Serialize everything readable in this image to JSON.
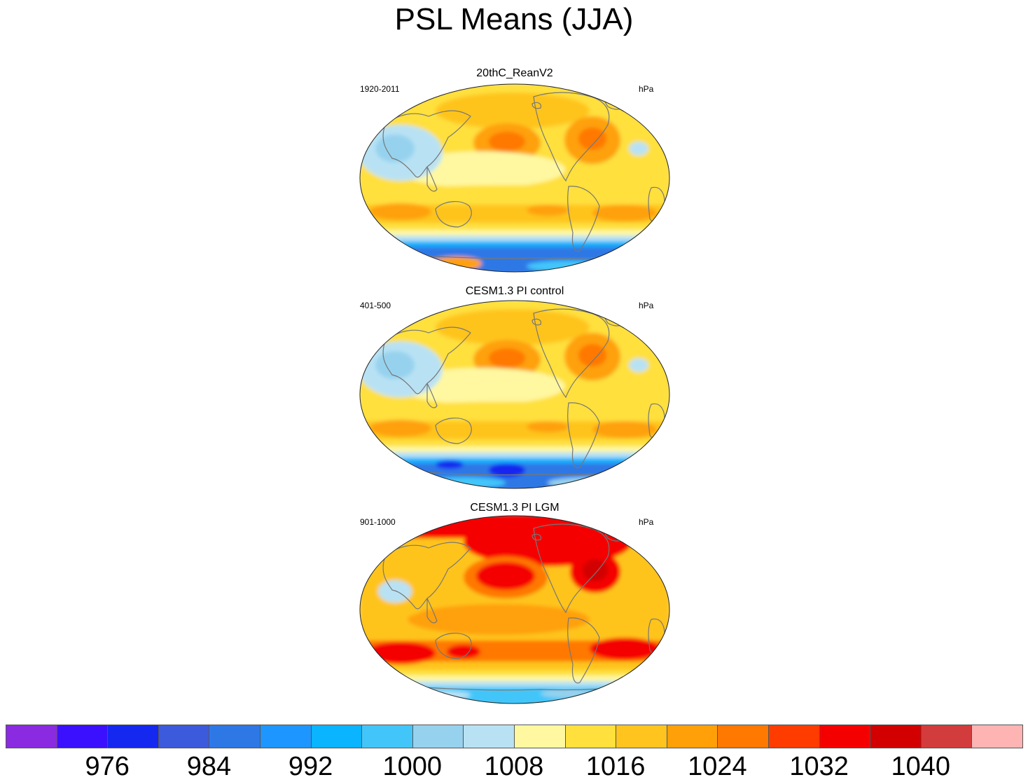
{
  "title": "PSL Means (JJA)",
  "panels": [
    {
      "name": "20thC_ReanV2",
      "period": "1920-2011",
      "units": "hPa",
      "variant": "rean"
    },
    {
      "name": "CESM1.3 PI control",
      "period": "401-500",
      "units": "hPa",
      "variant": "pi"
    },
    {
      "name": "CESM1.3 PI LGM",
      "period": "901-1000",
      "units": "hPa",
      "variant": "lgm"
    }
  ],
  "colorbar": {
    "colors": [
      "#8a2be2",
      "#3a10ff",
      "#1428f0",
      "#3c5adc",
      "#2e78e6",
      "#1e96ff",
      "#0ab4ff",
      "#42c6fa",
      "#96d2ee",
      "#b8e2f4",
      "#fff8a0",
      "#ffe03c",
      "#ffc41e",
      "#ffa008",
      "#ff7800",
      "#ff3c00",
      "#f50000",
      "#d20000",
      "#d23c3c",
      "#ffb4b4"
    ],
    "labels": [
      "976",
      "984",
      "992",
      "1000",
      "1008",
      "1016",
      "1024",
      "1032",
      "1040"
    ]
  }
}
